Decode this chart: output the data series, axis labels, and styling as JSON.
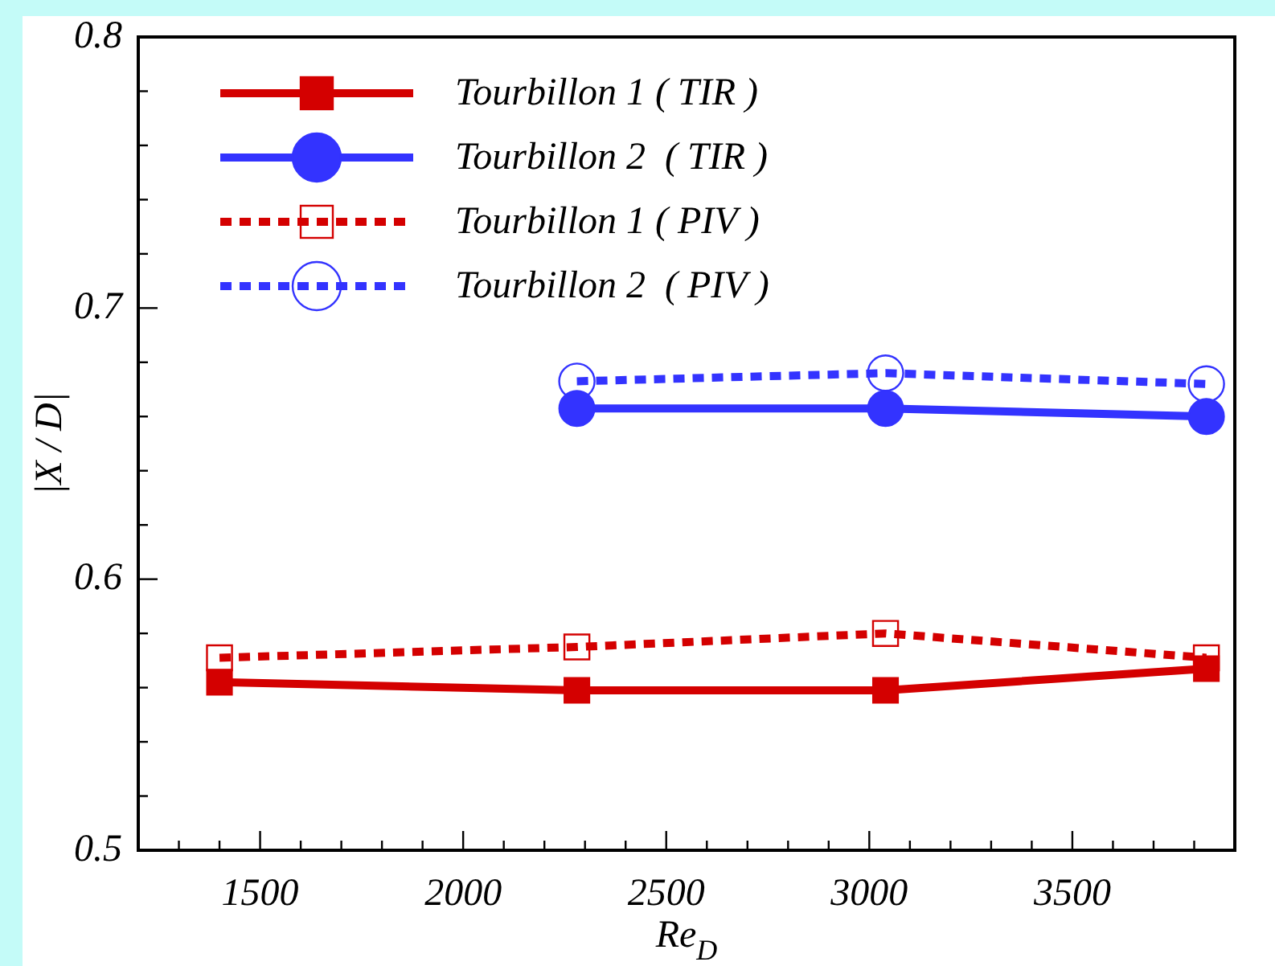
{
  "chart_data": {
    "type": "line",
    "xlabel": "Re$_{D}$",
    "ylabel": "|X / D|",
    "xlim": [
      1200,
      3900
    ],
    "ylim": [
      0.5,
      0.8
    ],
    "xticks": [
      {
        "value": 1300,
        "label": null
      },
      {
        "value": 1400,
        "label": null
      },
      1500,
      {
        "value": 1600,
        "label": null
      },
      {
        "value": 1700,
        "label": null
      },
      {
        "value": 1800,
        "label": null
      },
      {
        "value": 1900,
        "label": null
      },
      2000,
      {
        "value": 2100,
        "label": null
      },
      {
        "value": 2200,
        "label": null
      },
      {
        "value": 2300,
        "label": null
      },
      {
        "value": 2400,
        "label": null
      },
      2500,
      {
        "value": 2600,
        "label": null
      },
      {
        "value": 2700,
        "label": null
      },
      {
        "value": 2800,
        "label": null
      },
      {
        "value": 2900,
        "label": null
      },
      3000,
      {
        "value": 3100,
        "label": null
      },
      {
        "value": 3200,
        "label": null
      },
      {
        "value": 3300,
        "label": null
      },
      {
        "value": 3400,
        "label": null
      },
      3500,
      {
        "value": 3600,
        "label": null
      },
      {
        "value": 3700,
        "label": null
      },
      {
        "value": 3800,
        "label": null
      }
    ],
    "yticks": [
      0.5,
      {
        "value": 0.52,
        "label": null
      },
      {
        "value": 0.54,
        "label": null
      },
      {
        "value": 0.56,
        "label": null
      },
      {
        "value": 0.58,
        "label": null
      },
      0.6,
      {
        "value": 0.62,
        "label": null
      },
      {
        "value": 0.64,
        "label": null
      },
      {
        "value": 0.66,
        "label": null
      },
      {
        "value": 0.68,
        "label": null
      },
      0.7,
      {
        "value": 0.72,
        "label": null
      },
      {
        "value": 0.74,
        "label": null
      },
      {
        "value": 0.76,
        "label": null
      },
      {
        "value": 0.78,
        "label": null
      },
      0.8
    ],
    "grid": false,
    "legend": "top left",
    "series": [
      {
        "name": "Tourbillon 1 ( TIR )",
        "color": "#d40000",
        "marker": "square",
        "line_style": "solid",
        "x": [
          1400,
          2280,
          3040,
          3830
        ],
        "values": [
          0.562,
          0.559,
          0.559,
          0.567
        ]
      },
      {
        "name": "Tourbillon 2  ( TIR )",
        "color": "#3333ff",
        "marker": "circle",
        "line_style": "solid",
        "x": [
          2280,
          3040,
          3830
        ],
        "values": [
          0.663,
          0.663,
          0.66
        ]
      },
      {
        "name": "Tourbillon 1 ( PIV )",
        "color": "#d40000",
        "marker": "square",
        "line_style": "dashed",
        "x": [
          1400,
          2280,
          3040,
          3830
        ],
        "values": [
          0.571,
          0.575,
          0.58,
          0.571
        ]
      },
      {
        "name": "Tourbillon 2  ( PIV )",
        "color": "#3333ff",
        "marker": "circle",
        "line_style": "dashed",
        "x": [
          2280,
          3040,
          3830
        ],
        "values": [
          0.673,
          0.676,
          0.672
        ]
      }
    ]
  }
}
